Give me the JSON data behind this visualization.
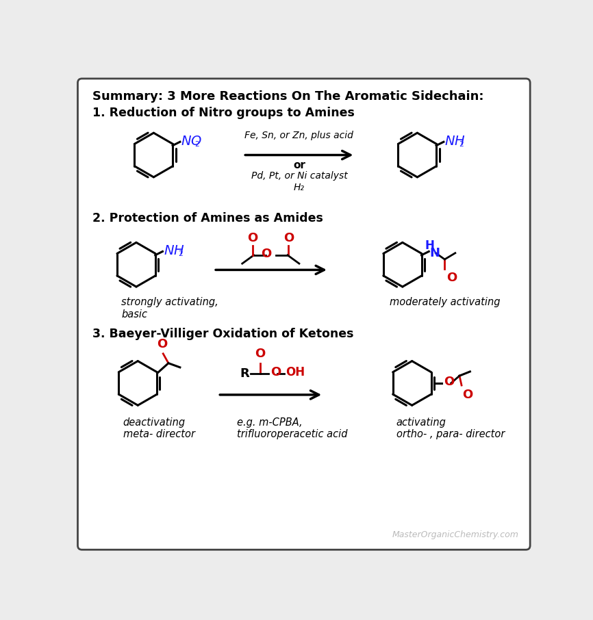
{
  "title": "Summary: 3 More Reactions On The Aromatic Sidechain:",
  "section1_title": "1. Reduction of Nitro groups to Amines",
  "section2_title": "2. Protection of Amines as Amides",
  "section3_title": "3. Baeyer-Villiger Oxidation of Ketones",
  "r1_line1": "Fe, Sn, or Zn, plus acid",
  "r1_line2": "or",
  "r1_line3": "Pd, Pt, or Ni catalyst",
  "r1_line4": "H₂",
  "r2_label_left": "strongly activating,\nbasic",
  "r2_label_right": "moderately activating",
  "r3_label_left": "deactivating\nmeta- director",
  "r3_label_mid": "e.g. m-CPBA,\ntrifluoroperacetic acid",
  "r3_label_right": "activating\northo- , para- director",
  "watermark": "MasterOrganicChemistry.com",
  "bg_color": "#ececec",
  "border_color": "#444444",
  "black": "#000000",
  "blue": "#1a1aff",
  "red": "#cc0000",
  "gray": "#bbbbbb",
  "white": "#ffffff"
}
